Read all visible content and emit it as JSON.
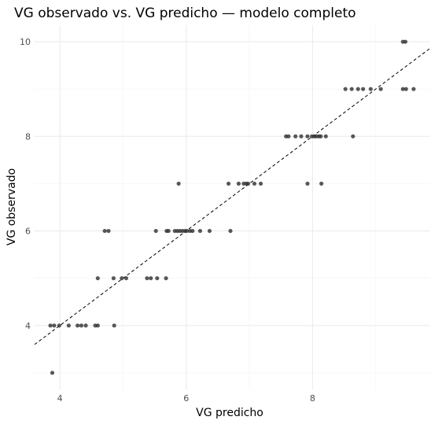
{
  "chart_data": {
    "type": "scatter",
    "title": "VG observado vs. VG predicho — modelo completo",
    "xlabel": "VG predicho",
    "ylabel": "VG observado",
    "xlim": [
      3.6,
      9.85
    ],
    "ylim": [
      2.65,
      10.35
    ],
    "x_ticks": [
      4,
      6,
      8
    ],
    "y_ticks": [
      4,
      6,
      8,
      10
    ],
    "grid": true,
    "reference_line": {
      "style": "dashed",
      "slope": 1,
      "intercept": 0
    },
    "point_color": "#333333",
    "points": [
      {
        "x": 9.43,
        "y": 10
      },
      {
        "x": 9.47,
        "y": 10
      },
      {
        "x": 8.52,
        "y": 9
      },
      {
        "x": 8.62,
        "y": 9
      },
      {
        "x": 8.72,
        "y": 9
      },
      {
        "x": 8.8,
        "y": 9
      },
      {
        "x": 8.92,
        "y": 9
      },
      {
        "x": 9.08,
        "y": 9
      },
      {
        "x": 9.43,
        "y": 9
      },
      {
        "x": 9.48,
        "y": 9
      },
      {
        "x": 9.6,
        "y": 9
      },
      {
        "x": 7.58,
        "y": 8
      },
      {
        "x": 7.62,
        "y": 8
      },
      {
        "x": 7.73,
        "y": 8
      },
      {
        "x": 7.82,
        "y": 8
      },
      {
        "x": 7.92,
        "y": 8
      },
      {
        "x": 7.99,
        "y": 8
      },
      {
        "x": 8.03,
        "y": 8
      },
      {
        "x": 8.06,
        "y": 8
      },
      {
        "x": 8.1,
        "y": 8
      },
      {
        "x": 8.13,
        "y": 8
      },
      {
        "x": 8.21,
        "y": 8
      },
      {
        "x": 8.64,
        "y": 8
      },
      {
        "x": 5.88,
        "y": 7
      },
      {
        "x": 6.67,
        "y": 7
      },
      {
        "x": 6.83,
        "y": 7
      },
      {
        "x": 6.91,
        "y": 7
      },
      {
        "x": 6.95,
        "y": 7
      },
      {
        "x": 6.98,
        "y": 7
      },
      {
        "x": 7.08,
        "y": 7
      },
      {
        "x": 7.18,
        "y": 7
      },
      {
        "x": 7.92,
        "y": 7
      },
      {
        "x": 8.14,
        "y": 7
      },
      {
        "x": 4.71,
        "y": 6
      },
      {
        "x": 4.77,
        "y": 6
      },
      {
        "x": 5.52,
        "y": 6
      },
      {
        "x": 5.69,
        "y": 6
      },
      {
        "x": 5.72,
        "y": 6
      },
      {
        "x": 5.82,
        "y": 6
      },
      {
        "x": 5.86,
        "y": 6
      },
      {
        "x": 5.9,
        "y": 6
      },
      {
        "x": 5.94,
        "y": 6
      },
      {
        "x": 5.98,
        "y": 6
      },
      {
        "x": 6.01,
        "y": 6
      },
      {
        "x": 6.06,
        "y": 6
      },
      {
        "x": 6.1,
        "y": 6
      },
      {
        "x": 6.22,
        "y": 6
      },
      {
        "x": 6.37,
        "y": 6
      },
      {
        "x": 6.7,
        "y": 6
      },
      {
        "x": 4.6,
        "y": 5
      },
      {
        "x": 4.85,
        "y": 5
      },
      {
        "x": 4.98,
        "y": 5
      },
      {
        "x": 5.05,
        "y": 5
      },
      {
        "x": 5.38,
        "y": 5
      },
      {
        "x": 5.44,
        "y": 5
      },
      {
        "x": 5.54,
        "y": 5
      },
      {
        "x": 5.68,
        "y": 5
      },
      {
        "x": 3.85,
        "y": 4
      },
      {
        "x": 3.91,
        "y": 4
      },
      {
        "x": 3.99,
        "y": 4
      },
      {
        "x": 4.14,
        "y": 4
      },
      {
        "x": 4.28,
        "y": 4
      },
      {
        "x": 4.34,
        "y": 4
      },
      {
        "x": 4.41,
        "y": 4
      },
      {
        "x": 4.56,
        "y": 4
      },
      {
        "x": 4.6,
        "y": 4
      },
      {
        "x": 4.86,
        "y": 4
      },
      {
        "x": 3.88,
        "y": 3
      }
    ]
  }
}
